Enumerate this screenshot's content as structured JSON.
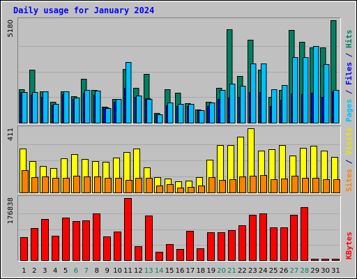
{
  "chart_data": {
    "type": "bar",
    "title": "Daily usage for January 2024",
    "categories": [
      "1",
      "2",
      "3",
      "4",
      "5",
      "6",
      "7",
      "8",
      "9",
      "10",
      "11",
      "12",
      "13",
      "14",
      "15",
      "16",
      "17",
      "18",
      "19",
      "20",
      "21",
      "22",
      "23",
      "24",
      "25",
      "26",
      "27",
      "28",
      "29",
      "30",
      "31"
    ],
    "weekend_days": [
      "6",
      "7",
      "13",
      "14",
      "20",
      "21",
      "27",
      "28"
    ],
    "panels": [
      {
        "name": "pages-files-hits",
        "max_label": "5180",
        "ymax": 5180,
        "side_labels": [
          {
            "text": "Pages",
            "color": "#00c0ff"
          },
          {
            "text": " / ",
            "color": "#000080"
          },
          {
            "text": "Files",
            "color": "#0000ff"
          },
          {
            "text": " / ",
            "color": "#000080"
          },
          {
            "text": "Hits",
            "color": "#00805c"
          }
        ],
        "series": [
          {
            "name": "Hits",
            "color": "#008060",
            "values": [
              1690,
              2680,
              1570,
              1040,
              1570,
              1330,
              2230,
              1640,
              810,
              1190,
              2720,
              1770,
              2450,
              480,
              1700,
              1520,
              970,
              670,
              1060,
              1750,
              4720,
              2370,
              4210,
              2670,
              1320,
              1670,
              4670,
              4080,
              3790,
              3790,
              5180
            ]
          },
          {
            "name": "Files",
            "color": "#0000ff",
            "values": [
              1550,
              1420,
              1290,
              880,
              1440,
              1200,
              1510,
              1400,
              770,
              1050,
              1750,
              1300,
              1240,
              440,
              870,
              840,
              830,
              640,
              860,
              1210,
              1280,
              1300,
              1560,
              1560,
              830,
              1180,
              1480,
              1440,
              1500,
              1300,
              1600
            ]
          },
          {
            "name": "Pages",
            "color": "#00c0ff",
            "values": [
              1550,
              1540,
              1570,
              960,
              1570,
              1280,
              1640,
              1620,
              740,
              1190,
              3060,
              1390,
              1190,
              430,
              1020,
              960,
              960,
              620,
              1010,
              1640,
              1970,
              1880,
              2980,
              2980,
              1700,
              1890,
              3310,
              3320,
              3870,
              2970,
              1640
            ]
          }
        ]
      },
      {
        "name": "sites-visits",
        "max_label": "411",
        "ymax": 411,
        "side_labels": [
          {
            "text": "Sites",
            "color": "#ff8000"
          },
          {
            "text": " / ",
            "color": "#000080"
          },
          {
            "text": "Visits",
            "color": "#e6e600"
          }
        ],
        "series": [
          {
            "name": "Visits",
            "color": "#ffff00",
            "values": [
              283,
              202,
              171,
              157,
              221,
              247,
              215,
              201,
              196,
              224,
              260,
              282,
              161,
              100,
              91,
              70,
              77,
              99,
              212,
              303,
              303,
              357,
              411,
              270,
              275,
              304,
              238,
              287,
              298,
              270,
              228
            ]
          },
          {
            "name": "Sites",
            "color": "#ff8000",
            "values": [
              141,
              97,
              102,
              96,
              95,
              107,
              104,
              102,
              95,
              94,
              82,
              94,
              92,
              45,
              55,
              32,
              36,
              45,
              97,
              80,
              87,
              102,
              106,
              113,
              86,
              90,
              106,
              95,
              93,
              86,
              87
            ]
          }
        ]
      },
      {
        "name": "kbytes",
        "max_label": "176838",
        "ymax": 176838,
        "side_labels": [
          {
            "text": "KBytes",
            "color": "#ff0000"
          }
        ],
        "series": [
          {
            "name": "KBytes",
            "color": "#ff0000",
            "values": [
              66300,
              90800,
              117000,
              70300,
              122000,
              111000,
              113000,
              134000,
              67400,
              80700,
              176838,
              40500,
              127000,
              24600,
              44900,
              31200,
              83700,
              34500,
              79100,
              79100,
              85600,
              98700,
              130000,
              133000,
              93000,
              93000,
              130000,
              152000,
              4000,
              4000,
              4000
            ]
          }
        ]
      }
    ]
  }
}
